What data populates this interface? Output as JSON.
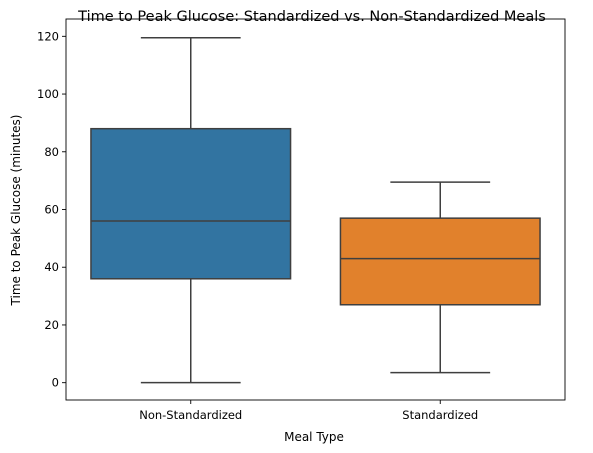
{
  "chart_data": {
    "type": "box",
    "title": "Time to Peak Glucose: Standardized vs. Non-Standardized Meals",
    "xlabel": "Meal Type",
    "ylabel": "Time to Peak Glucose (minutes)",
    "ylim": [
      -6,
      126
    ],
    "yticks": [
      0,
      20,
      40,
      60,
      80,
      100,
      120
    ],
    "ytick_labels": [
      "0",
      "20",
      "40",
      "60",
      "80",
      "100",
      "120"
    ],
    "grid": false,
    "categories": [
      "Non-Standardized",
      "Standardized"
    ],
    "boxes": [
      {
        "category": "Non-Standardized",
        "whisker_low": 0,
        "q1": 36,
        "median": 56,
        "q3": 88,
        "whisker_high": 119.5,
        "color": "#3274a1"
      },
      {
        "category": "Standardized",
        "whisker_low": 3.5,
        "q1": 27,
        "median": 43,
        "q3": 57,
        "whisker_high": 69.5,
        "color": "#e1812c"
      }
    ],
    "line_color": "#3f3f3f"
  }
}
